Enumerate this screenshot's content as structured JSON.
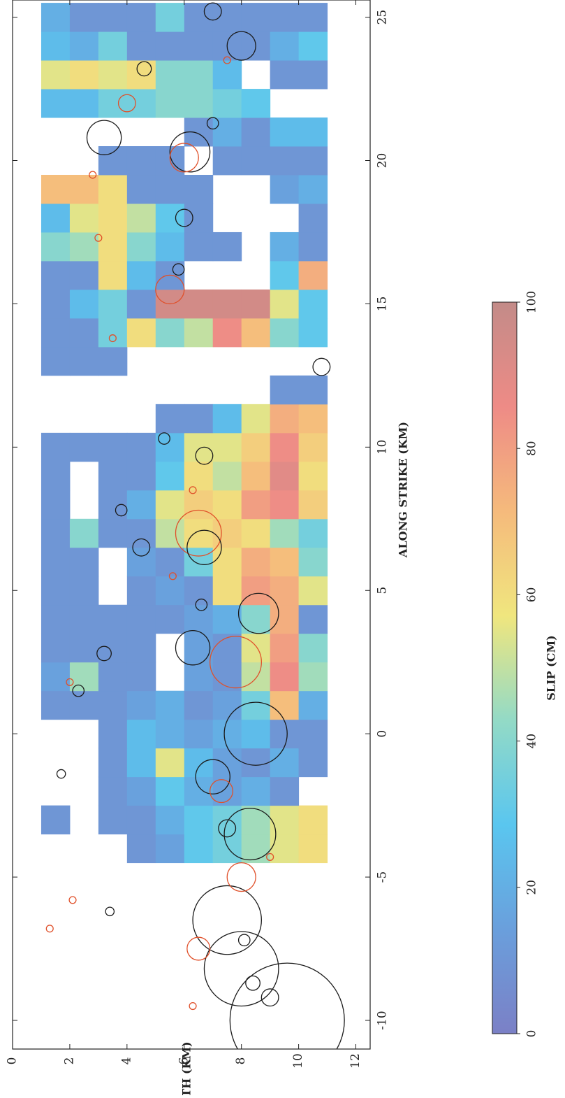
{
  "chart_data": {
    "type": "heatmap",
    "xlabel": "ALONG STRIKE (KM)",
    "ylabel": "DEPTH (KM)",
    "xlim": [
      -11,
      25.6
    ],
    "ylim": [
      0,
      12.5
    ],
    "xticks": [
      -10,
      -5,
      0,
      5,
      10,
      15,
      20,
      25
    ],
    "yticks": [
      0,
      2,
      4,
      6,
      8,
      10,
      12
    ],
    "x": [
      -4,
      -3,
      -2,
      -1,
      0,
      1,
      2,
      3,
      4,
      5,
      6,
      7,
      8,
      9,
      10,
      11,
      12,
      13,
      14,
      15,
      16,
      17,
      18,
      19,
      20,
      21,
      22,
      23,
      24,
      25
    ],
    "y": [
      1.5,
      2.5,
      3.5,
      4.5,
      5.5,
      6.5,
      7.5,
      8.5,
      9.5,
      10.5
    ],
    "values": [
      [
        null,
        null,
        null,
        10,
        15,
        30,
        35,
        45,
        55,
        60
      ],
      [
        10,
        null,
        10,
        10,
        20,
        30,
        35,
        45,
        55,
        60
      ],
      [
        null,
        null,
        10,
        15,
        30,
        20,
        15,
        20,
        10,
        null
      ],
      [
        null,
        null,
        10,
        25,
        55,
        25,
        15,
        10,
        20,
        10
      ],
      [
        null,
        null,
        10,
        25,
        20,
        15,
        20,
        25,
        10,
        10
      ],
      [
        10,
        10,
        10,
        15,
        20,
        10,
        15,
        35,
        70,
        20
      ],
      [
        15,
        45,
        10,
        10,
        null,
        15,
        10,
        50,
        85,
        45
      ],
      [
        10,
        10,
        10,
        10,
        null,
        15,
        10,
        55,
        80,
        40
      ],
      [
        10,
        10,
        10,
        10,
        10,
        15,
        20,
        40,
        75,
        10
      ],
      [
        10,
        10,
        null,
        10,
        15,
        10,
        60,
        80,
        75,
        55
      ],
      [
        10,
        10,
        null,
        15,
        10,
        35,
        60,
        75,
        70,
        40
      ],
      [
        10,
        40,
        10,
        10,
        50,
        60,
        65,
        60,
        45,
        35
      ],
      [
        10,
        null,
        10,
        20,
        55,
        65,
        60,
        80,
        85,
        65
      ],
      [
        10,
        null,
        10,
        10,
        30,
        60,
        50,
        70,
        90,
        60
      ],
      [
        10,
        10,
        10,
        10,
        25,
        55,
        55,
        65,
        85,
        65
      ],
      [
        null,
        null,
        null,
        null,
        10,
        10,
        25,
        55,
        75,
        70
      ],
      [
        null,
        null,
        null,
        null,
        null,
        null,
        null,
        null,
        10,
        10
      ],
      [
        10,
        10,
        10,
        null,
        null,
        null,
        null,
        null,
        null,
        null
      ],
      [
        10,
        10,
        35,
        60,
        40,
        50,
        85,
        70,
        40,
        30
      ],
      [
        10,
        25,
        35,
        10,
        95,
        95,
        95,
        95,
        55,
        30
      ],
      [
        10,
        10,
        60,
        25,
        10,
        null,
        null,
        null,
        30,
        75
      ],
      [
        40,
        45,
        60,
        40,
        25,
        10,
        10,
        null,
        20,
        10
      ],
      [
        25,
        55,
        60,
        50,
        30,
        10,
        null,
        null,
        null,
        10
      ],
      [
        70,
        70,
        60,
        10,
        10,
        10,
        null,
        null,
        15,
        20
      ],
      [
        null,
        null,
        10,
        10,
        10,
        null,
        10,
        10,
        10,
        10
      ],
      [
        null,
        null,
        null,
        null,
        null,
        10,
        20,
        10,
        25,
        25
      ],
      [
        25,
        25,
        35,
        35,
        40,
        40,
        35,
        30,
        null,
        null
      ],
      [
        55,
        60,
        55,
        60,
        40,
        40,
        25,
        null,
        10,
        10
      ],
      [
        25,
        20,
        35,
        10,
        10,
        10,
        10,
        10,
        20,
        30
      ],
      [
        20,
        10,
        10,
        10,
        35,
        10,
        10,
        10,
        10,
        10
      ]
    ],
    "colormap": [
      "#7b80c6",
      "#6a9fdc",
      "#5ac6ef",
      "#93dac6",
      "#f0e67e",
      "#f5ba7c",
      "#ee8b86",
      "#c38b88"
    ],
    "colorbar_label": "SLIP (CM)",
    "clim": [
      0,
      100
    ],
    "cticks": [
      0,
      20,
      40,
      60,
      80,
      100
    ],
    "events": [
      {
        "x": -10,
        "depth": 9.6,
        "size": 2.0,
        "color": "#1a1a1a"
      },
      {
        "x": -8.2,
        "depth": 8.0,
        "size": 1.3,
        "color": "#1a1a1a"
      },
      {
        "x": -6.5,
        "depth": 7.5,
        "size": 1.2,
        "color": "#1a1a1a"
      },
      {
        "x": -3.5,
        "depth": 8.3,
        "size": 0.9,
        "color": "#1a1a1a"
      },
      {
        "x": 0,
        "depth": 8.5,
        "size": 1.1,
        "color": "#1a1a1a"
      },
      {
        "x": 2.5,
        "depth": 7.8,
        "size": 0.9,
        "color": "#e0502a"
      },
      {
        "x": 3,
        "depth": 6.3,
        "size": 0.6,
        "color": "#1a1a1a"
      },
      {
        "x": 7,
        "depth": 6.5,
        "size": 0.8,
        "color": "#e0502a"
      },
      {
        "x": 6.5,
        "depth": 6.7,
        "size": 0.6,
        "color": "#1a1a1a"
      },
      {
        "x": 4.2,
        "depth": 8.6,
        "size": 0.7,
        "color": "#1a1a1a"
      },
      {
        "x": 20.3,
        "depth": 6.2,
        "size": 0.7,
        "color": "#1a1a1a"
      },
      {
        "x": 20.1,
        "depth": 6.0,
        "size": 0.5,
        "color": "#e0502a"
      },
      {
        "x": 20.8,
        "depth": 3.2,
        "size": 0.6,
        "color": "#1a1a1a"
      },
      {
        "x": 24,
        "depth": 8.0,
        "size": 0.5,
        "color": "#1a1a1a"
      },
      {
        "x": 18,
        "depth": 6.0,
        "size": 0.3,
        "color": "#1a1a1a"
      },
      {
        "x": 15.5,
        "depth": 5.5,
        "size": 0.5,
        "color": "#e0502a"
      },
      {
        "x": 12.8,
        "depth": 10.8,
        "size": 0.3,
        "color": "#1a1a1a"
      },
      {
        "x": 22,
        "depth": 4.0,
        "size": 0.3,
        "color": "#e0502a"
      },
      {
        "x": -1.5,
        "depth": 7.0,
        "size": 0.6,
        "color": "#1a1a1a"
      },
      {
        "x": -2,
        "depth": 7.3,
        "size": 0.4,
        "color": "#e0502a"
      },
      {
        "x": -5,
        "depth": 8.0,
        "size": 0.5,
        "color": "#e0502a"
      },
      {
        "x": -7.5,
        "depth": 6.5,
        "size": 0.4,
        "color": "#e0502a"
      },
      {
        "x": -9.2,
        "depth": 9.0,
        "size": 0.3,
        "color": "#1a1a1a"
      },
      {
        "x": 16.2,
        "depth": 5.8,
        "size": 0.2,
        "color": "#1a1a1a"
      },
      {
        "x": 10.3,
        "depth": 5.3,
        "size": 0.2,
        "color": "#1a1a1a"
      },
      {
        "x": 9.7,
        "depth": 6.7,
        "size": 0.3,
        "color": "#1a1a1a"
      },
      {
        "x": 1.5,
        "depth": 2.3,
        "size": 0.2,
        "color": "#1a1a1a"
      },
      {
        "x": 2.8,
        "depth": 3.2,
        "size": 0.25,
        "color": "#1a1a1a"
      },
      {
        "x": 6.5,
        "depth": 4.5,
        "size": 0.3,
        "color": "#1a1a1a"
      },
      {
        "x": 7.8,
        "depth": 3.8,
        "size": 0.2,
        "color": "#1a1a1a"
      },
      {
        "x": 23.2,
        "depth": 4.6,
        "size": 0.25,
        "color": "#1a1a1a"
      },
      {
        "x": 25.2,
        "depth": 7.0,
        "size": 0.3,
        "color": "#1a1a1a"
      },
      {
        "x": 21.3,
        "depth": 7.0,
        "size": 0.2,
        "color": "#1a1a1a"
      },
      {
        "x": -6.2,
        "depth": 3.4,
        "size": 0.15,
        "color": "#1a1a1a"
      },
      {
        "x": -1.4,
        "depth": 1.7,
        "size": 0.15,
        "color": "#1a1a1a"
      },
      {
        "x": 4.5,
        "depth": 6.6,
        "size": 0.2,
        "color": "#1a1a1a"
      },
      {
        "x": -3.3,
        "depth": 7.5,
        "size": 0.3,
        "color": "#1a1a1a"
      },
      {
        "x": -7.2,
        "depth": 8.1,
        "size": 0.2,
        "color": "#1a1a1a"
      },
      {
        "x": -8.7,
        "depth": 8.4,
        "size": 0.25,
        "color": "#1a1a1a"
      },
      {
        "x": -6.8,
        "depth": 1.3,
        "size": 0.12,
        "color": "#e0502a"
      },
      {
        "x": -5.8,
        "depth": 2.1,
        "size": 0.12,
        "color": "#e0502a"
      },
      {
        "x": 1.8,
        "depth": 2.0,
        "size": 0.12,
        "color": "#e0502a"
      },
      {
        "x": 5.5,
        "depth": 5.6,
        "size": 0.12,
        "color": "#e0502a"
      },
      {
        "x": 8.5,
        "depth": 6.3,
        "size": 0.12,
        "color": "#e0502a"
      },
      {
        "x": 13.8,
        "depth": 3.5,
        "size": 0.12,
        "color": "#e0502a"
      },
      {
        "x": 17.3,
        "depth": 3.0,
        "size": 0.12,
        "color": "#e0502a"
      },
      {
        "x": 19.5,
        "depth": 2.8,
        "size": 0.12,
        "color": "#e0502a"
      },
      {
        "x": 23.5,
        "depth": 7.5,
        "size": 0.12,
        "color": "#e0502a"
      },
      {
        "x": -4.3,
        "depth": 9.0,
        "size": 0.12,
        "color": "#e0502a"
      },
      {
        "x": -9.5,
        "depth": 6.3,
        "size": 0.12,
        "color": "#e0502a"
      }
    ]
  }
}
